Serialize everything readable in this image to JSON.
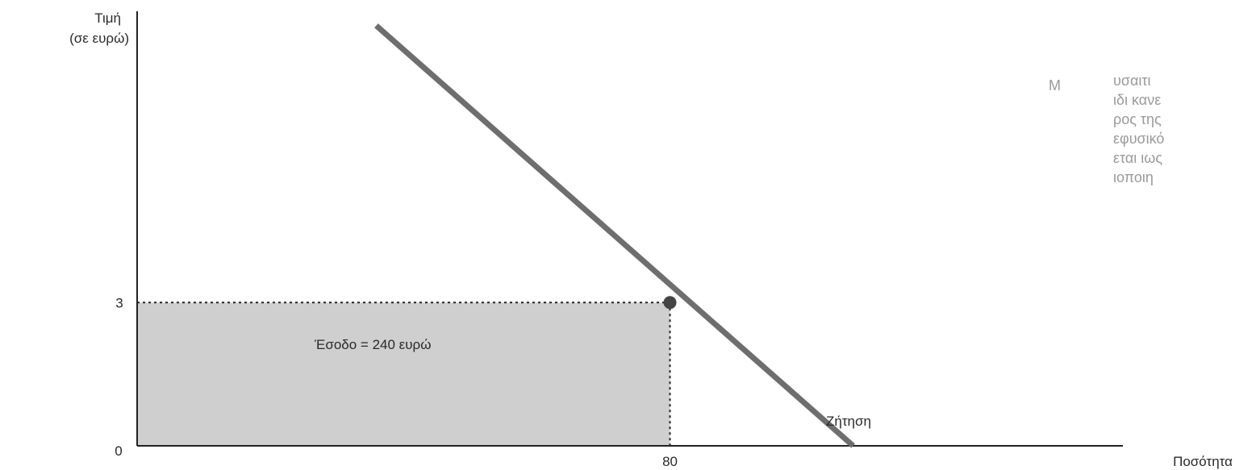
{
  "chart_data": {
    "type": "line",
    "ylabel_line1": "Τιμή",
    "ylabel_line2": "(σε ευρώ)",
    "xlabel": "Ποσότητα",
    "origin_label": "0",
    "y_tick": {
      "value": 3,
      "label": "3"
    },
    "x_tick": {
      "value": 80,
      "label": "80"
    },
    "point": {
      "x": 80,
      "y": 3
    },
    "revenue_area_label": "Έσοδο = 240 ευρώ",
    "series": [
      {
        "name": "Ζήτηση",
        "x": [
          35.9,
          107.5
        ],
        "y": [
          8.8,
          0
        ]
      }
    ],
    "xlim": [
      0,
      148
    ],
    "ylim": [
      0,
      9.1
    ],
    "colors": {
      "demand_line": "#6e6e6e",
      "axis": "#222222",
      "area": "#cfcfcf",
      "point": "#444444"
    }
  },
  "background_text": {
    "big_letter": "M",
    "right_column": [
      "υσαιτι",
      "ιδι κανε",
      "ρος της",
      "εφυσικό",
      "εται ιως",
      "ιοποιη"
    ]
  }
}
